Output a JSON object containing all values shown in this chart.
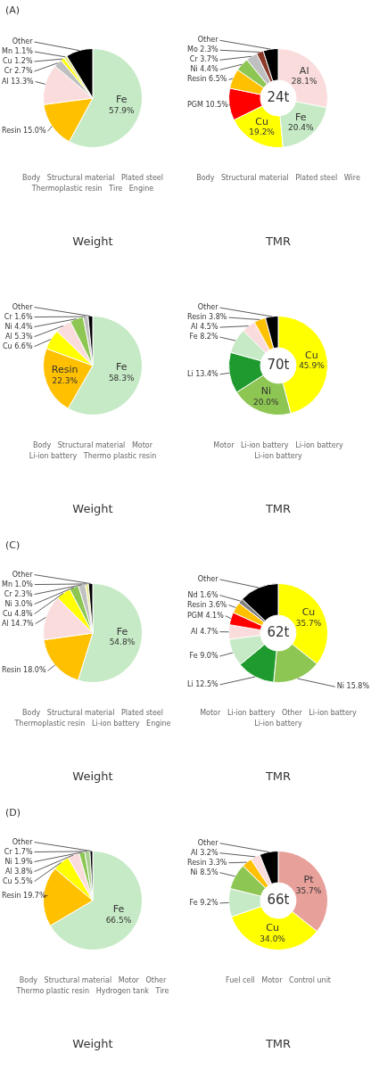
{
  "chart_data": [
    {
      "type": "pie",
      "subtitle": "(A)",
      "title": "Weight",
      "categories": [
        "Fe",
        "Resin",
        "Al",
        "Cr",
        "Cu",
        "Mn",
        "Other"
      ],
      "values": [
        57.9,
        15.0,
        13.3,
        2.7,
        1.2,
        1.1,
        8.8
      ],
      "value_labels": [
        "57.9%",
        "15.0%",
        "13.3%",
        "2.7%",
        "1.2%",
        "1.1%",
        null
      ],
      "colors": [
        "#c6eac6",
        "#ffc000",
        "#fadcdc",
        "#bfbfbf",
        "#ffff00",
        "#e6e68a",
        "#000000"
      ],
      "annotations": [
        "Body",
        "Structural material",
        "Plated steel",
        "Thermoplastic resin",
        "Tire",
        "Engine"
      ]
    },
    {
      "type": "donut",
      "title": "TMR",
      "categories": [
        "Al",
        "Fe",
        "Cu",
        "PGM",
        "Resin",
        "Ni",
        "Cr",
        "Mo",
        "Other"
      ],
      "values": [
        28.1,
        20.4,
        19.2,
        10.5,
        6.5,
        4.4,
        3.7,
        2.3,
        4.9
      ],
      "value_labels": [
        "28.1%",
        "20.4%",
        "19.2%",
        "10.5%",
        "6.5%",
        "4.4%",
        "3.7%",
        "2.3%",
        null
      ],
      "colors": [
        "#fadcdc",
        "#c6eac6",
        "#ffff00",
        "#ff0000",
        "#ffc000",
        "#8dc652",
        "#bfbfbf",
        "#8b3a2a",
        "#000000"
      ],
      "annotations": [
        "24t",
        "Body",
        "Structural material",
        "Plated steel",
        "Wire"
      ]
    },
    {
      "type": "pie",
      "title": "Weight",
      "categories": [
        "Fe",
        "Resin",
        "Cu",
        "Al",
        "Ni",
        "Cr",
        "Other"
      ],
      "values": [
        58.3,
        22.3,
        6.6,
        5.3,
        4.4,
        1.6,
        1.5
      ],
      "value_labels": [
        "58.3%",
        "22.3%",
        "6.6%",
        "5.3%",
        "4.4%",
        "1.6%",
        null
      ],
      "colors": [
        "#c6eac6",
        "#ffc000",
        "#ffff00",
        "#fadcdc",
        "#8dc652",
        "#bfbfbf",
        "#000000"
      ],
      "annotations": [
        "Body",
        "Structural material",
        "Motor",
        "Li-ion battery",
        "Thermo plastic resin"
      ]
    },
    {
      "type": "donut",
      "title": "TMR",
      "categories": [
        "Cu",
        "Ni",
        "Li",
        "Fe",
        "Al",
        "Resin",
        "Other"
      ],
      "values": [
        45.9,
        20.0,
        13.4,
        8.2,
        4.5,
        3.8,
        4.2
      ],
      "value_labels": [
        "45.9%",
        "20.0%",
        "13.4%",
        "8.2%",
        "4.5%",
        "3.8%",
        null
      ],
      "colors": [
        "#ffff00",
        "#8dc652",
        "#1e9a2e",
        "#c6eac6",
        "#fadcdc",
        "#ffc000",
        "#000000"
      ],
      "annotations": [
        "70t",
        "Motor",
        "Li-ion battery",
        "Li-ion battery",
        "Li-ion battery"
      ]
    },
    {
      "type": "pie",
      "subtitle": "(C)",
      "title": "Weight",
      "categories": [
        "Fe",
        "Resin",
        "Al",
        "Cu",
        "Ni",
        "Cr",
        "Mn",
        "Other"
      ],
      "values": [
        54.8,
        18.0,
        14.7,
        4.8,
        3.0,
        2.3,
        1.0,
        1.4
      ],
      "value_labels": [
        "54.8%",
        "18.0%",
        "14.7%",
        "4.8%",
        "3.0%",
        "2.3%",
        "1.0%",
        null
      ],
      "colors": [
        "#c6eac6",
        "#ffc000",
        "#fadcdc",
        "#ffff00",
        "#8dc652",
        "#bfbfbf",
        "#e6e68a",
        "#000000"
      ],
      "annotations": [
        "Body",
        "Structural material",
        "Plated steel",
        "Thermoplastic resin",
        "Li-ion battery",
        "Engine"
      ]
    },
    {
      "type": "donut",
      "title": "TMR",
      "categories": [
        "Cu",
        "Ni",
        "Li",
        "Fe",
        "Al",
        "PGM",
        "Resin",
        "Nd",
        "Other"
      ],
      "values": [
        35.7,
        15.8,
        12.5,
        9.0,
        4.7,
        4.1,
        3.6,
        1.6,
        13.0
      ],
      "value_labels": [
        "35.7%",
        "15.8%",
        "12.5%",
        "9.0%",
        "4.7%",
        "4.1%",
        "3.6%",
        "1.6%",
        null
      ],
      "colors": [
        "#ffff00",
        "#8dc652",
        "#1e9a2e",
        "#c6eac6",
        "#fadcdc",
        "#ff0000",
        "#ffc000",
        "#808080",
        "#000000"
      ],
      "annotations": [
        "62t",
        "Motor",
        "Li-ion battery",
        "Other",
        "Li-ion battery",
        "Li-ion battery"
      ]
    },
    {
      "type": "pie",
      "subtitle": "(D)",
      "title": "Weight",
      "categories": [
        "Fe",
        "Resin",
        "Cu",
        "Al",
        "Ni",
        "Cr",
        "Other"
      ],
      "values": [
        66.5,
        19.7,
        5.5,
        3.8,
        1.9,
        1.7,
        0.9
      ],
      "value_labels": [
        "66.5%",
        "19.7%",
        "5.5%",
        "3.8%",
        "1.9%",
        "1.7%",
        null
      ],
      "colors": [
        "#c6eac6",
        "#ffc000",
        "#ffff00",
        "#fadcdc",
        "#8dc652",
        "#a9d18e",
        "#000000"
      ],
      "annotations": [
        "Body",
        "Structural material",
        "Motor",
        "Other",
        "Thermo plastic resin",
        "Hydrogen tank",
        "Tire"
      ]
    },
    {
      "type": "donut",
      "title": "TMR",
      "categories": [
        "Pt",
        "Cu",
        "Fe",
        "Ni",
        "Resin",
        "Al",
        "Other"
      ],
      "values": [
        35.7,
        34.0,
        9.2,
        8.5,
        3.3,
        3.2,
        6.1
      ],
      "value_labels": [
        "35.7%",
        "34.0%",
        "9.2%",
        "8.5%",
        "3.3%",
        "3.2%",
        null
      ],
      "colors": [
        "#e8a09a",
        "#ffff00",
        "#c6eac6",
        "#8dc652",
        "#ffc000",
        "#fadcdc",
        "#000000"
      ],
      "annotations": [
        "66t",
        "Fuel cell",
        "Motor",
        "Control unit"
      ]
    }
  ]
}
